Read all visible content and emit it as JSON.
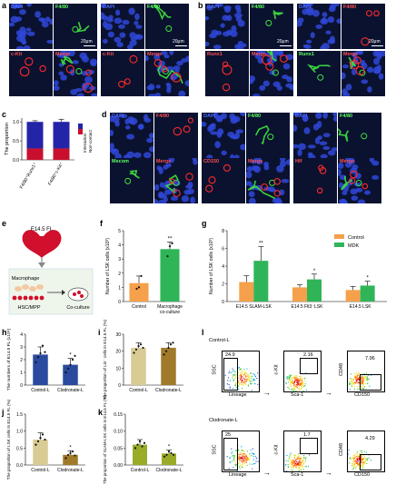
{
  "panels": {
    "a": {
      "letter": "a",
      "tiles": [
        {
          "label": "DAPI",
          "color": "#4f6bff"
        },
        {
          "label": "F4/80",
          "color": "#5fff5f"
        },
        {
          "label": "DAPI",
          "color": "#4f6bff"
        },
        {
          "label": "F4/80",
          "color": "#5fff5f"
        },
        {
          "label": "c-Kit",
          "color": "#ff4f4f"
        },
        {
          "label": "Merge",
          "color": "#ff4f4f"
        },
        {
          "label": "c-Kit",
          "color": "#ff4f4f"
        },
        {
          "label": "Merge",
          "color": "#ff4f4f"
        }
      ],
      "scale_text": [
        "20μm",
        "20μm"
      ]
    },
    "b": {
      "letter": "b",
      "tiles": [
        {
          "label": "DAPI",
          "color": "#4f6bff"
        },
        {
          "label": "F4/80",
          "color": "#5fff5f"
        },
        {
          "label": "DAPI",
          "color": "#4f6bff"
        },
        {
          "label": "F4/80",
          "color": "#ff4f4f"
        },
        {
          "label": "Runx1",
          "color": "#ff4f4f"
        },
        {
          "label": "Merge",
          "color": "#ff4f4f"
        },
        {
          "label": "Runx1",
          "color": "#5fff5f"
        },
        {
          "label": "Merge",
          "color": "#ff4f4f"
        }
      ],
      "scale_text": [
        "20μm",
        "20μm"
      ]
    },
    "c": {
      "letter": "c"
    },
    "d": {
      "letter": "d",
      "tiles": [
        {
          "label": "DAPI",
          "color": "#4f6bff"
        },
        {
          "label": "F4/80",
          "color": "#ff4f4f"
        },
        {
          "label": "DAPI",
          "color": "#4f6bff"
        },
        {
          "label": "F4/80",
          "color": "#5fff5f"
        },
        {
          "label": "DAPI",
          "color": "#4f6bff"
        },
        {
          "label": "F4/80",
          "color": "#5fff5f"
        },
        {
          "label": "Mecom",
          "color": "#5fff5f"
        },
        {
          "label": "Merge",
          "color": "#ff4f4f"
        },
        {
          "label": "CD150",
          "color": "#ff4f4f"
        },
        {
          "label": "Merge",
          "color": "#ff4f4f"
        },
        {
          "label": "Hlf",
          "color": "#ff4f4f"
        },
        {
          "label": "Merge",
          "color": "#ff4f4f"
        }
      ]
    },
    "e": {
      "letter": "e",
      "fl_label": "E14.5 FL",
      "macrophage": "Macrophage",
      "hsc": "HSC/MPP",
      "coculture": "Co-culture"
    },
    "f": {
      "letter": "f"
    },
    "g": {
      "letter": "g"
    },
    "h": {
      "letter": "h"
    },
    "i": {
      "letter": "i"
    },
    "j": {
      "letter": "j"
    },
    "k": {
      "letter": "k"
    },
    "l": {
      "letter": "l",
      "rows": [
        {
          "title": "Control-L",
          "g1": "24.9",
          "g2": "2.16",
          "g3": "7.96"
        },
        {
          "title": "Clodronate-L",
          "g1": "25",
          "g2": "1.7",
          "g3": "4.29"
        }
      ],
      "x1": "Lineage",
      "y1": "SSC",
      "x2": "Sca-1",
      "y2": "c-Kit",
      "x3": "CD150",
      "y3": "CD48"
    }
  },
  "chart_data": [
    {
      "id": "c",
      "type": "bar",
      "stacked": true,
      "ylabel": "The proportion",
      "categories": [
        "F4/80⁺Runx1⁺",
        "F4/80⁺c-Kit⁺"
      ],
      "yticks": [
        "0.0",
        "0.5",
        "1.0"
      ],
      "ylim": [
        0,
        1.1
      ],
      "series": [
        {
          "name": "Non-contact",
          "values": [
            0.3,
            0.3
          ],
          "color": "#c8102e"
        },
        {
          "name": "Interaction",
          "values": [
            0.7,
            0.7
          ],
          "color": "#2424a8"
        }
      ],
      "error_top": [
        0.03,
        0.07
      ],
      "legend": [
        "Interaction",
        "Non-contact"
      ]
    },
    {
      "id": "f",
      "type": "bar",
      "ylabel": "Number of LSK cells (x10³)",
      "categories": [
        "Control",
        "Macrophage co-culture"
      ],
      "yticks": [
        "0",
        "1",
        "2",
        "3",
        "4",
        "5"
      ],
      "ylim": [
        0,
        5
      ],
      "values": [
        1.3,
        3.7
      ],
      "errors": [
        0.5,
        0.5
      ],
      "colors": [
        "#f5a04a",
        "#2fb558"
      ],
      "points": [
        [
          0.9,
          1.0,
          1.8
        ],
        [
          3.2,
          3.9,
          4.1
        ]
      ],
      "stars": [
        "",
        "**"
      ]
    },
    {
      "id": "g",
      "type": "bar",
      "ylabel": "Number of LSK cells (x10³)",
      "categories": [
        "E14.5 SLAM-LSK",
        "E14.5 Flt3⁻LSK",
        "E14.5 LSK"
      ],
      "yticks": [
        "0",
        "2",
        "4",
        "6",
        "8"
      ],
      "ylim": [
        0,
        8
      ],
      "series": [
        {
          "name": "Control",
          "values": [
            2.2,
            1.6,
            1.3
          ],
          "errors": [
            0.7,
            0.3,
            0.4
          ],
          "color": "#f5a04a"
        },
        {
          "name": "MDK",
          "values": [
            4.6,
            2.5,
            1.8
          ],
          "errors": [
            1.6,
            0.6,
            0.5
          ],
          "color": "#2fb558"
        }
      ],
      "stars": [
        "**",
        "*",
        "*"
      ],
      "legend": [
        "Control",
        "MDK"
      ]
    },
    {
      "id": "h",
      "type": "bar",
      "ylabel": "The numbers of E14.5 FL (x10⁶)",
      "categories": [
        "Control-L",
        "Clodronate-L"
      ],
      "yticks": [
        "0",
        "1",
        "2",
        "3",
        "4"
      ],
      "ylim": [
        0,
        4
      ],
      "values": [
        2.4,
        1.6
      ],
      "errors": [
        0.6,
        0.5
      ],
      "colors": [
        "#2a4aa0",
        "#2a4aa0"
      ],
      "points": [
        [
          1.8,
          2.2,
          2.5,
          3.1,
          2.6
        ],
        [
          1.0,
          1.3,
          1.6,
          2.0,
          2.3
        ]
      ],
      "stars": [
        "",
        "*"
      ]
    },
    {
      "id": "i",
      "type": "bar",
      "ylabel": "The proportion of Lin⁻ cells in E14.5 FL (%)",
      "categories": [
        "Control-L",
        "Clodronate-L"
      ],
      "yticks": [
        "0",
        "10",
        "20",
        "30"
      ],
      "ylim": [
        0,
        30
      ],
      "values": [
        22,
        22
      ],
      "errors": [
        3,
        3
      ],
      "colors": [
        "#d8cb93",
        "#a07a2a"
      ],
      "points": [
        [
          19,
          21,
          23,
          24,
          22
        ],
        [
          18,
          20,
          22,
          24,
          25
        ]
      ],
      "stars": [
        "",
        ""
      ]
    },
    {
      "id": "j",
      "type": "bar",
      "ylabel": "The proportion of LSK cells in E14.5 FL (%)",
      "categories": [
        "Control-L",
        "Clodronate-L"
      ],
      "yticks": [
        "0.0",
        "0.5",
        "1.0",
        "1.5"
      ],
      "ylim": [
        0,
        1.5
      ],
      "values": [
        0.75,
        0.3
      ],
      "errors": [
        0.2,
        0.12
      ],
      "colors": [
        "#d8cb93",
        "#a07a2a"
      ],
      "points": [
        [
          0.6,
          0.7,
          0.8,
          0.9,
          0.75
        ],
        [
          0.2,
          0.3,
          0.35,
          0.4,
          0.28
        ]
      ],
      "stars": [
        "",
        "*"
      ]
    },
    {
      "id": "k",
      "type": "bar",
      "ylabel": "The proportion of SLAM-LSK cells in E14.5 FL (%)",
      "categories": [
        "Control-L",
        "Clodronate-L"
      ],
      "yticks": [
        "0.00",
        "0.05",
        "0.10",
        "0.15"
      ],
      "ylim": [
        0,
        0.15
      ],
      "values": [
        0.06,
        0.034
      ],
      "errors": [
        0.015,
        0.01
      ],
      "colors": [
        "#9aab28",
        "#9aab28"
      ],
      "points": [
        [
          0.05,
          0.06,
          0.07,
          0.055,
          0.065
        ],
        [
          0.025,
          0.03,
          0.04,
          0.035,
          0.03
        ]
      ],
      "stars": [
        "",
        "*"
      ]
    }
  ]
}
